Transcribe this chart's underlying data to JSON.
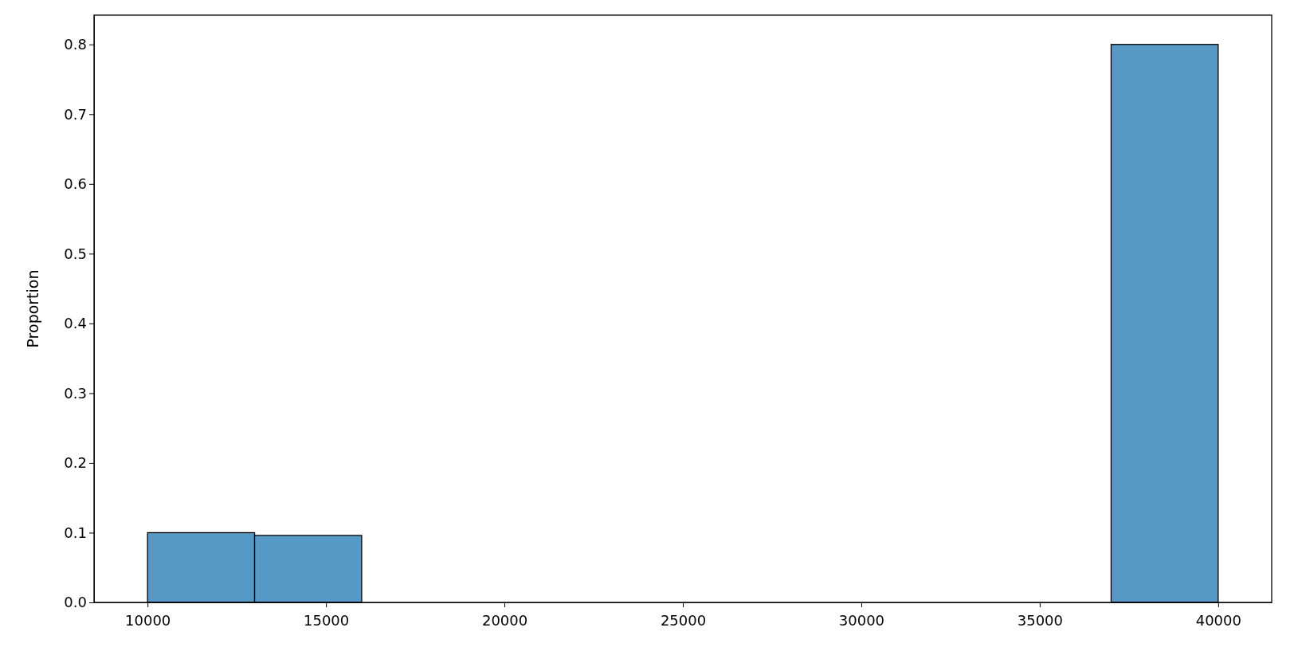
{
  "chart_data": {
    "type": "histogram",
    "ylabel": "Proportion",
    "bins": [
      10000,
      13000,
      16000,
      19000,
      22000,
      25000,
      28000,
      31000,
      34000,
      37000,
      40000
    ],
    "values": [
      0.1,
      0.096,
      0,
      0,
      0,
      0,
      0,
      0,
      0,
      0.8
    ],
    "color": "#5698c6",
    "xlim": [
      8500,
      41500
    ],
    "xticks": [
      10000,
      15000,
      20000,
      25000,
      30000,
      35000,
      40000
    ],
    "ylim": [
      0,
      0.842
    ],
    "yticks": [
      {
        "value": 0,
        "label": "0.0"
      },
      0.1,
      0.2,
      0.3,
      0.4,
      0.5,
      0.6,
      0.7,
      0.8
    ],
    "grid": false
  }
}
